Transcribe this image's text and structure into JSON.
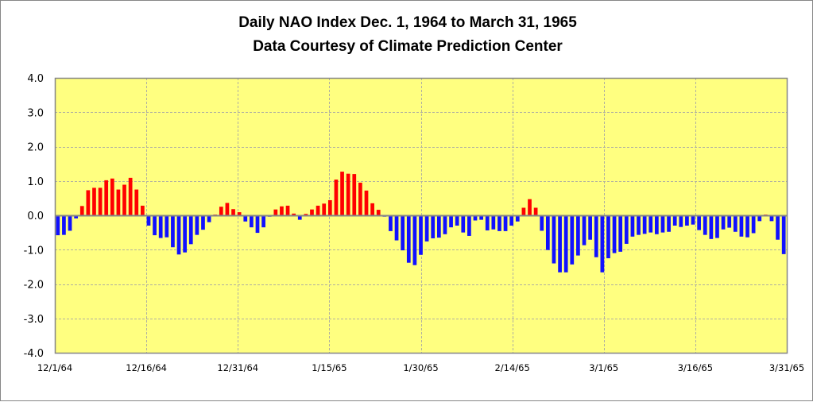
{
  "chart_data": {
    "type": "bar",
    "title": "Daily NAO Index Dec. 1, 1964 to March 31, 1965",
    "subtitle": "Data Courtesy of Climate Prediction Center",
    "xlabel": "",
    "ylabel": "",
    "ylim": [
      -4.0,
      4.0
    ],
    "y_ticks": [
      "4.0",
      "3.0",
      "2.0",
      "1.0",
      "0.0",
      "-1.0",
      "-2.0",
      "-3.0",
      "-4.0"
    ],
    "y_tick_values": [
      4,
      3,
      2,
      1,
      0,
      -1,
      -2,
      -3,
      -4
    ],
    "x_tick_labels": [
      "12/1/64",
      "12/16/64",
      "12/31/64",
      "1/15/65",
      "1/30/65",
      "2/14/65",
      "3/1/65",
      "3/16/65",
      "3/31/65"
    ],
    "x_tick_day_index": [
      0,
      15,
      30,
      45,
      60,
      75,
      90,
      105,
      120
    ],
    "x_range": [
      "12/1/64",
      "3/31/65"
    ],
    "grid": true,
    "legend": "none",
    "colors": {
      "positive": "#ff0000",
      "negative": "#1010ff",
      "plot_background": "#ffff80",
      "gridline": "#b0b0a0",
      "axis": "#868686"
    },
    "values": [
      -0.58,
      -0.57,
      -0.45,
      -0.09,
      0.27,
      0.73,
      0.8,
      0.8,
      1.02,
      1.07,
      0.75,
      0.89,
      1.09,
      0.75,
      0.28,
      -0.3,
      -0.58,
      -0.66,
      -0.64,
      -0.93,
      -1.14,
      -1.08,
      -0.84,
      -0.57,
      -0.42,
      -0.2,
      0.02,
      0.25,
      0.36,
      0.18,
      0.09,
      -0.18,
      -0.35,
      -0.51,
      -0.35,
      -0.04,
      0.17,
      0.26,
      0.28,
      0.05,
      -0.13,
      0.04,
      0.17,
      0.28,
      0.34,
      0.44,
      1.04,
      1.27,
      1.21,
      1.2,
      0.95,
      0.72,
      0.35,
      0.16,
      -0.04,
      -0.46,
      -0.73,
      -1.02,
      -1.38,
      -1.45,
      -1.15,
      -0.76,
      -0.67,
      -0.65,
      -0.55,
      -0.35,
      -0.3,
      -0.5,
      -0.6,
      -0.15,
      -0.13,
      -0.44,
      -0.41,
      -0.46,
      -0.46,
      -0.3,
      -0.18,
      0.22,
      0.47,
      0.22,
      -0.45,
      -1.01,
      -1.4,
      -1.66,
      -1.66,
      -1.43,
      -1.17,
      -0.87,
      -0.71,
      -1.22,
      -1.66,
      -1.25,
      -1.1,
      -1.06,
      -0.83,
      -0.62,
      -0.57,
      -0.54,
      -0.5,
      -0.55,
      -0.5,
      -0.48,
      -0.3,
      -0.34,
      -0.3,
      -0.27,
      -0.43,
      -0.57,
      -0.69,
      -0.66,
      -0.41,
      -0.36,
      -0.48,
      -0.62,
      -0.64,
      -0.52,
      -0.17,
      0.02,
      -0.17,
      -0.71,
      -1.13
    ]
  }
}
